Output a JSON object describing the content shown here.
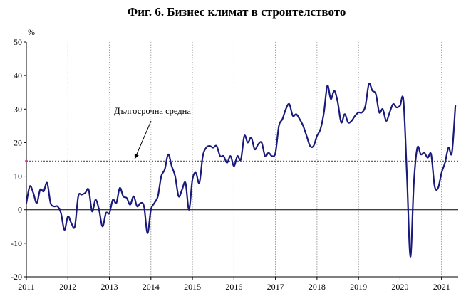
{
  "chart_data": {
    "type": "line",
    "title": "Фиг. 6. Бизнес климат в строителството",
    "ylabel": "%",
    "xlabel": "",
    "ylim": [
      -20,
      50
    ],
    "yticks": [
      50,
      40,
      30,
      20,
      10,
      0,
      -10,
      -20
    ],
    "xlim": [
      2011,
      2021.4
    ],
    "xticks": [
      "2011",
      "2012",
      "2013",
      "2014",
      "2015",
      "2016",
      "2017",
      "2018",
      "2019",
      "2020",
      "2021"
    ],
    "grid": "vertical dotted lines at year boundaries",
    "colors": {
      "series": "#1a1a7a",
      "average": "#666666",
      "axis": "#000000"
    },
    "annotation": {
      "text": "Дългосрочна средна",
      "value": 14.5
    },
    "series": [
      {
        "points": [
          [
            2011.0,
            2
          ],
          [
            2011.083,
            7
          ],
          [
            2011.167,
            5
          ],
          [
            2011.25,
            2
          ],
          [
            2011.333,
            6
          ],
          [
            2011.417,
            5.5
          ],
          [
            2011.5,
            8
          ],
          [
            2011.583,
            2
          ],
          [
            2011.667,
            1
          ],
          [
            2011.75,
            1
          ],
          [
            2011.833,
            -1
          ],
          [
            2011.917,
            -6
          ],
          [
            2012.0,
            -2
          ],
          [
            2012.083,
            -4
          ],
          [
            2012.167,
            -5
          ],
          [
            2012.25,
            4
          ],
          [
            2012.333,
            4.5
          ],
          [
            2012.417,
            5
          ],
          [
            2012.5,
            6
          ],
          [
            2012.583,
            -0.5
          ],
          [
            2012.667,
            3
          ],
          [
            2012.75,
            0
          ],
          [
            2012.833,
            -5
          ],
          [
            2012.917,
            -1
          ],
          [
            2013.0,
            -1
          ],
          [
            2013.083,
            3
          ],
          [
            2013.167,
            2
          ],
          [
            2013.25,
            6.5
          ],
          [
            2013.333,
            4
          ],
          [
            2013.417,
            3.5
          ],
          [
            2013.5,
            1.5
          ],
          [
            2013.583,
            4
          ],
          [
            2013.667,
            1
          ],
          [
            2013.75,
            2
          ],
          [
            2013.833,
            1
          ],
          [
            2013.917,
            -7
          ],
          [
            2014.0,
            0
          ],
          [
            2014.083,
            2
          ],
          [
            2014.167,
            4
          ],
          [
            2014.25,
            10
          ],
          [
            2014.333,
            12
          ],
          [
            2014.417,
            16.5
          ],
          [
            2014.5,
            13
          ],
          [
            2014.583,
            10
          ],
          [
            2014.667,
            4
          ],
          [
            2014.75,
            6
          ],
          [
            2014.833,
            8
          ],
          [
            2014.917,
            0
          ],
          [
            2015.0,
            9
          ],
          [
            2015.083,
            11
          ],
          [
            2015.167,
            8
          ],
          [
            2015.25,
            16
          ],
          [
            2015.333,
            18.5
          ],
          [
            2015.417,
            19
          ],
          [
            2015.5,
            18.5
          ],
          [
            2015.583,
            19
          ],
          [
            2015.667,
            16
          ],
          [
            2015.75,
            16
          ],
          [
            2015.833,
            14
          ],
          [
            2015.917,
            16
          ],
          [
            2016.0,
            13
          ],
          [
            2016.083,
            16
          ],
          [
            2016.167,
            15
          ],
          [
            2016.25,
            22
          ],
          [
            2016.333,
            20
          ],
          [
            2016.417,
            21.5
          ],
          [
            2016.5,
            18
          ],
          [
            2016.583,
            19.5
          ],
          [
            2016.667,
            20
          ],
          [
            2016.75,
            16
          ],
          [
            2016.833,
            17
          ],
          [
            2016.917,
            16
          ],
          [
            2017.0,
            17
          ],
          [
            2017.083,
            25
          ],
          [
            2017.167,
            27
          ],
          [
            2017.25,
            30
          ],
          [
            2017.333,
            31.5
          ],
          [
            2017.417,
            28
          ],
          [
            2017.5,
            28.5
          ],
          [
            2017.583,
            27
          ],
          [
            2017.667,
            25
          ],
          [
            2017.75,
            22
          ],
          [
            2017.833,
            19
          ],
          [
            2017.917,
            19
          ],
          [
            2018.0,
            22
          ],
          [
            2018.083,
            24
          ],
          [
            2018.167,
            29
          ],
          [
            2018.25,
            37
          ],
          [
            2018.333,
            33
          ],
          [
            2018.417,
            35.5
          ],
          [
            2018.5,
            32
          ],
          [
            2018.583,
            26
          ],
          [
            2018.667,
            28.5
          ],
          [
            2018.75,
            26
          ],
          [
            2018.833,
            26.5
          ],
          [
            2018.917,
            28
          ],
          [
            2019.0,
            29
          ],
          [
            2019.083,
            29
          ],
          [
            2019.167,
            31
          ],
          [
            2019.25,
            37.5
          ],
          [
            2019.333,
            35.5
          ],
          [
            2019.417,
            34.5
          ],
          [
            2019.5,
            29
          ],
          [
            2019.583,
            30
          ],
          [
            2019.667,
            26.5
          ],
          [
            2019.75,
            29
          ],
          [
            2019.833,
            31.5
          ],
          [
            2019.917,
            30.5
          ],
          [
            2020.0,
            31
          ],
          [
            2020.083,
            32.5
          ],
          [
            2020.167,
            10
          ],
          [
            2020.25,
            -14
          ],
          [
            2020.333,
            8
          ],
          [
            2020.417,
            18.5
          ],
          [
            2020.5,
            16.5
          ],
          [
            2020.583,
            17
          ],
          [
            2020.667,
            15.5
          ],
          [
            2020.75,
            16.5
          ],
          [
            2020.833,
            7
          ],
          [
            2020.917,
            6.5
          ],
          [
            2021.0,
            11
          ],
          [
            2021.083,
            14
          ],
          [
            2021.167,
            18.5
          ],
          [
            2021.25,
            17
          ],
          [
            2021.333,
            31
          ]
        ]
      }
    ]
  }
}
